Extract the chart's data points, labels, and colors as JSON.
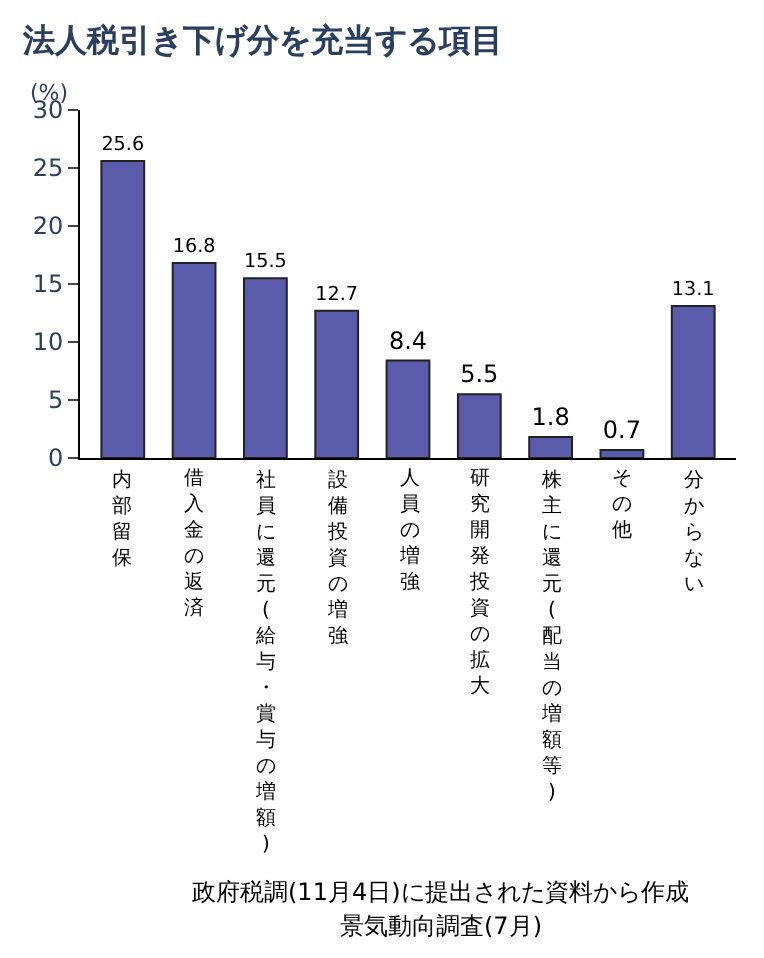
{
  "chart_data": {
    "type": "bar",
    "title": "法人税引き下げ分を充当する項目",
    "ylabel": "(%)",
    "categories": [
      "内部留保",
      "借入金の返済",
      "社員に還元(給与・賞与の増額)",
      "設備投資の増強",
      "人員の増強",
      "研究開発投資の拡大",
      "株主に還元(配当の増額等)",
      "その他",
      "分からない"
    ],
    "values": [
      25.6,
      16.8,
      15.5,
      12.7,
      8.4,
      5.5,
      1.8,
      0.7,
      13.1
    ],
    "color": "#5b5bab",
    "data_labels": true,
    "ylim": [
      0,
      30
    ],
    "yticks": [
      0,
      5,
      10,
      15,
      20,
      25,
      30
    ],
    "annotations": [
      "政府税調(11月4日)に提出された資料から作成",
      "景気動向調査(7月)"
    ]
  }
}
